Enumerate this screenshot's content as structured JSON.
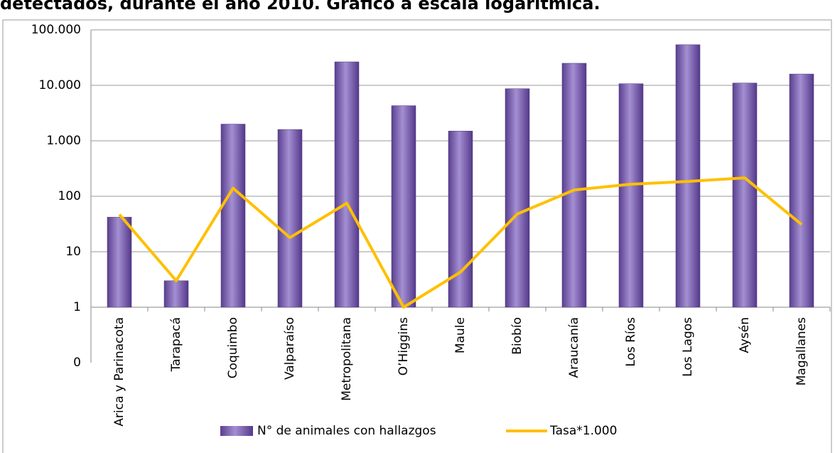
{
  "chart_data": {
    "type": "bar",
    "title": "detectados, durante el año 2010. Gráfico a escala logarítmica.",
    "categories": [
      "Arica y Parinacota",
      "Tarapacá",
      "Coquimbo",
      "Valparaíso",
      "Metropolitana",
      "O’Higgins",
      "Maule",
      "Biobío",
      "Araucanía",
      "Los Ríos",
      "Los Lagos",
      "Aysén",
      "Magallanes"
    ],
    "series": [
      {
        "name": "N° de animales con hallazgos",
        "type": "bar",
        "color": "#7b5fb3",
        "values": [
          42,
          3,
          2000,
          1600,
          26500,
          4300,
          1500,
          8700,
          25000,
          10700,
          54000,
          11000,
          16000
        ]
      },
      {
        "name": "Tasa*1.000",
        "type": "line",
        "color": "#ffc000",
        "values": [
          47,
          3,
          140,
          18,
          75,
          1,
          4.3,
          48,
          130,
          165,
          185,
          215,
          31
        ]
      }
    ],
    "log_scale": true,
    "baseline": 1,
    "ylim": [
      0.1,
      100000
    ],
    "yticks": [
      {
        "value": 0.1,
        "label": "0"
      },
      1,
      10,
      {
        "value": 100,
        "label": "100"
      },
      {
        "value": 1000,
        "label": "1.000"
      },
      {
        "value": 10000,
        "label": "10.000"
      },
      {
        "value": 100000,
        "label": "100.000"
      }
    ],
    "grid": true,
    "legend": "bottom"
  }
}
